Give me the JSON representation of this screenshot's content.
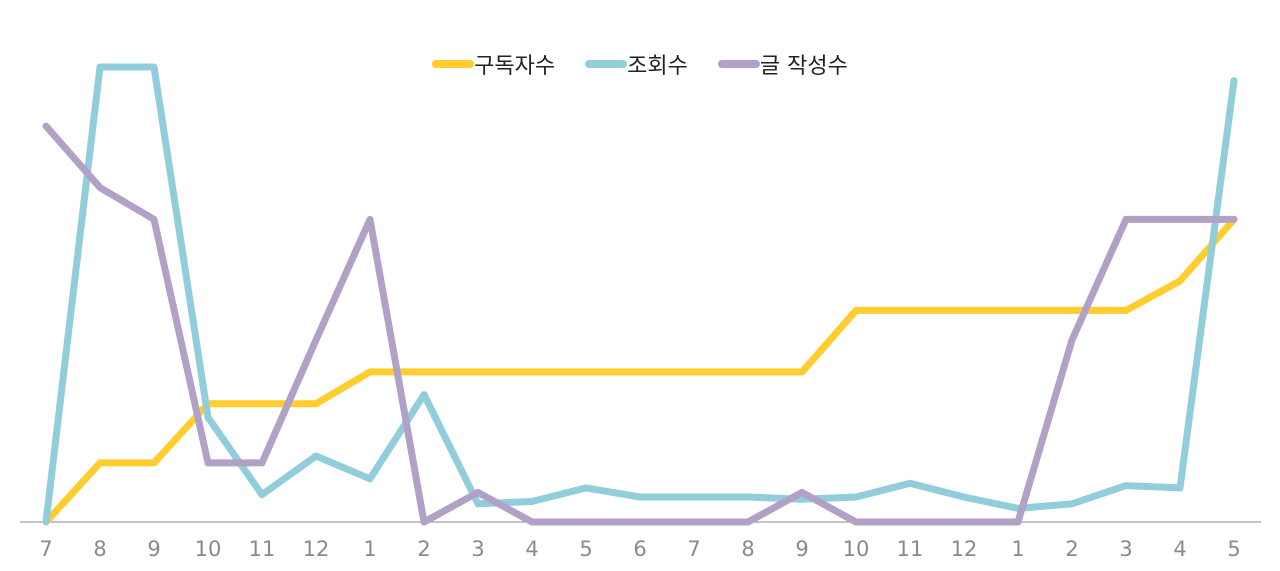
{
  "chart_data": {
    "type": "line",
    "title": "",
    "xlabel": "",
    "ylabel": "",
    "categories": [
      "7",
      "8",
      "9",
      "10",
      "11",
      "12",
      "1",
      "2",
      "3",
      "4",
      "5",
      "6",
      "7",
      "8",
      "9",
      "10",
      "11",
      "12",
      "1",
      "2",
      "3",
      "4",
      "5"
    ],
    "ylim": [
      0,
      100
    ],
    "grid": false,
    "legend_position": "top-center",
    "series": [
      {
        "name": "구독자수",
        "color": "#FFCD2E",
        "values": [
          0,
          13,
          13,
          26,
          26,
          26,
          33,
          33,
          33,
          33,
          33,
          33,
          33,
          33,
          33,
          46.5,
          46.5,
          46.5,
          46.5,
          46.5,
          46.5,
          53,
          66.5
        ]
      },
      {
        "name": "조회수",
        "color": "#92CDDC",
        "values": [
          0,
          100,
          100,
          23,
          6,
          14.5,
          9.5,
          28,
          4,
          4.5,
          7.5,
          5.5,
          5.5,
          5.5,
          5,
          5.5,
          8.5,
          5.5,
          3,
          4,
          8,
          7.5,
          97
        ]
      },
      {
        "name": "글 작성수",
        "color": "#B2A1C7",
        "values": [
          87,
          73.5,
          66.5,
          13,
          13,
          40,
          66.5,
          0,
          6.5,
          0,
          0,
          0,
          0,
          0,
          6.5,
          0,
          0,
          0,
          0,
          40,
          66.5,
          66.5,
          66.5
        ]
      }
    ]
  }
}
